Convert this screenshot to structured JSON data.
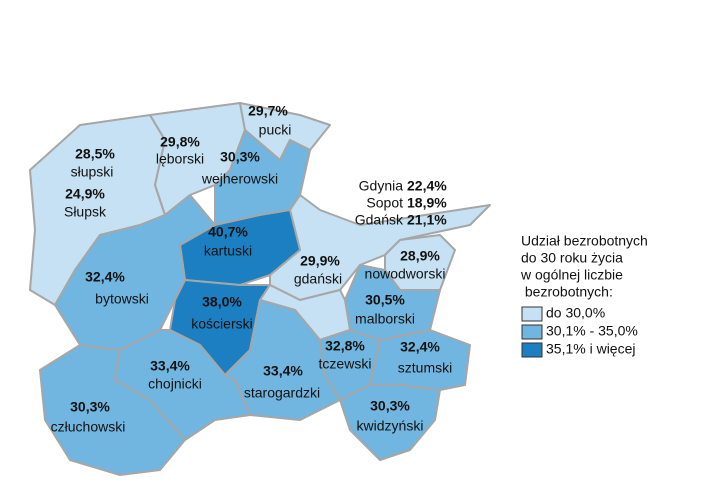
{
  "map": {
    "regions": [
      {
        "name": "słupski",
        "value": "28,5%",
        "color": "#c5e1f3"
      },
      {
        "name": "lęborski",
        "value": "29,8%",
        "color": "#c5e1f3"
      },
      {
        "name": "pucki",
        "value": "29,7%",
        "color": "#c5e1f3"
      },
      {
        "name": "wejherowski",
        "value": "30,3%",
        "color": "#70b6e0"
      },
      {
        "name": "kartuski",
        "value": "40,7%",
        "color": "#1b7fc2"
      },
      {
        "name": "nowodworski",
        "value": "28,9%",
        "color": "#c5e1f3"
      },
      {
        "name": "bytowski",
        "value": "32,4%",
        "color": "#70b6e0"
      },
      {
        "name": "kościerski",
        "value": "38,0%",
        "color": "#1b7fc2"
      },
      {
        "name": "malborski",
        "value": "30,5%",
        "color": "#70b6e0"
      },
      {
        "name": "gdański",
        "value": "29,9%",
        "color": "#c5e1f3"
      },
      {
        "name": "tczewski",
        "value": "32,8%",
        "color": "#70b6e0"
      },
      {
        "name": "sztumski",
        "value": "32,4%",
        "color": "#70b6e0"
      },
      {
        "name": "starogardzki",
        "value": "33,4%",
        "color": "#70b6e0"
      },
      {
        "name": "chojnicki",
        "value": "33,4%",
        "color": "#70b6e0"
      },
      {
        "name": "człuchowski",
        "value": "30,3%",
        "color": "#70b6e0"
      },
      {
        "name": "kwidzyński",
        "value": "30,3%",
        "color": "#70b6e0"
      },
      {
        "name": "Słupsk",
        "value": "24,9%",
        "color": "#c5e1f3"
      }
    ],
    "cities": [
      {
        "name": "Gdynia",
        "value": "22,4%",
        "color": "#c5e1f3"
      },
      {
        "name": "Sopot",
        "value": "18,9%",
        "color": "#c5e1f3"
      },
      {
        "name": "Gdańsk",
        "value": "21,1%",
        "color": "#c5e1f3"
      }
    ],
    "legend": {
      "title": [
        "Udział bezrobotnych",
        "do 30 roku życia",
        "w ogólnej liczbie",
        " bezrobotnych:"
      ],
      "items": [
        {
          "label": "do 30,0%",
          "color": "#c5e1f3"
        },
        {
          "label": "30,1% - 35,0%",
          "color": "#70b6e0"
        },
        {
          "label": "35,1% i więcej",
          "color": "#1b7fc2"
        }
      ]
    }
  }
}
